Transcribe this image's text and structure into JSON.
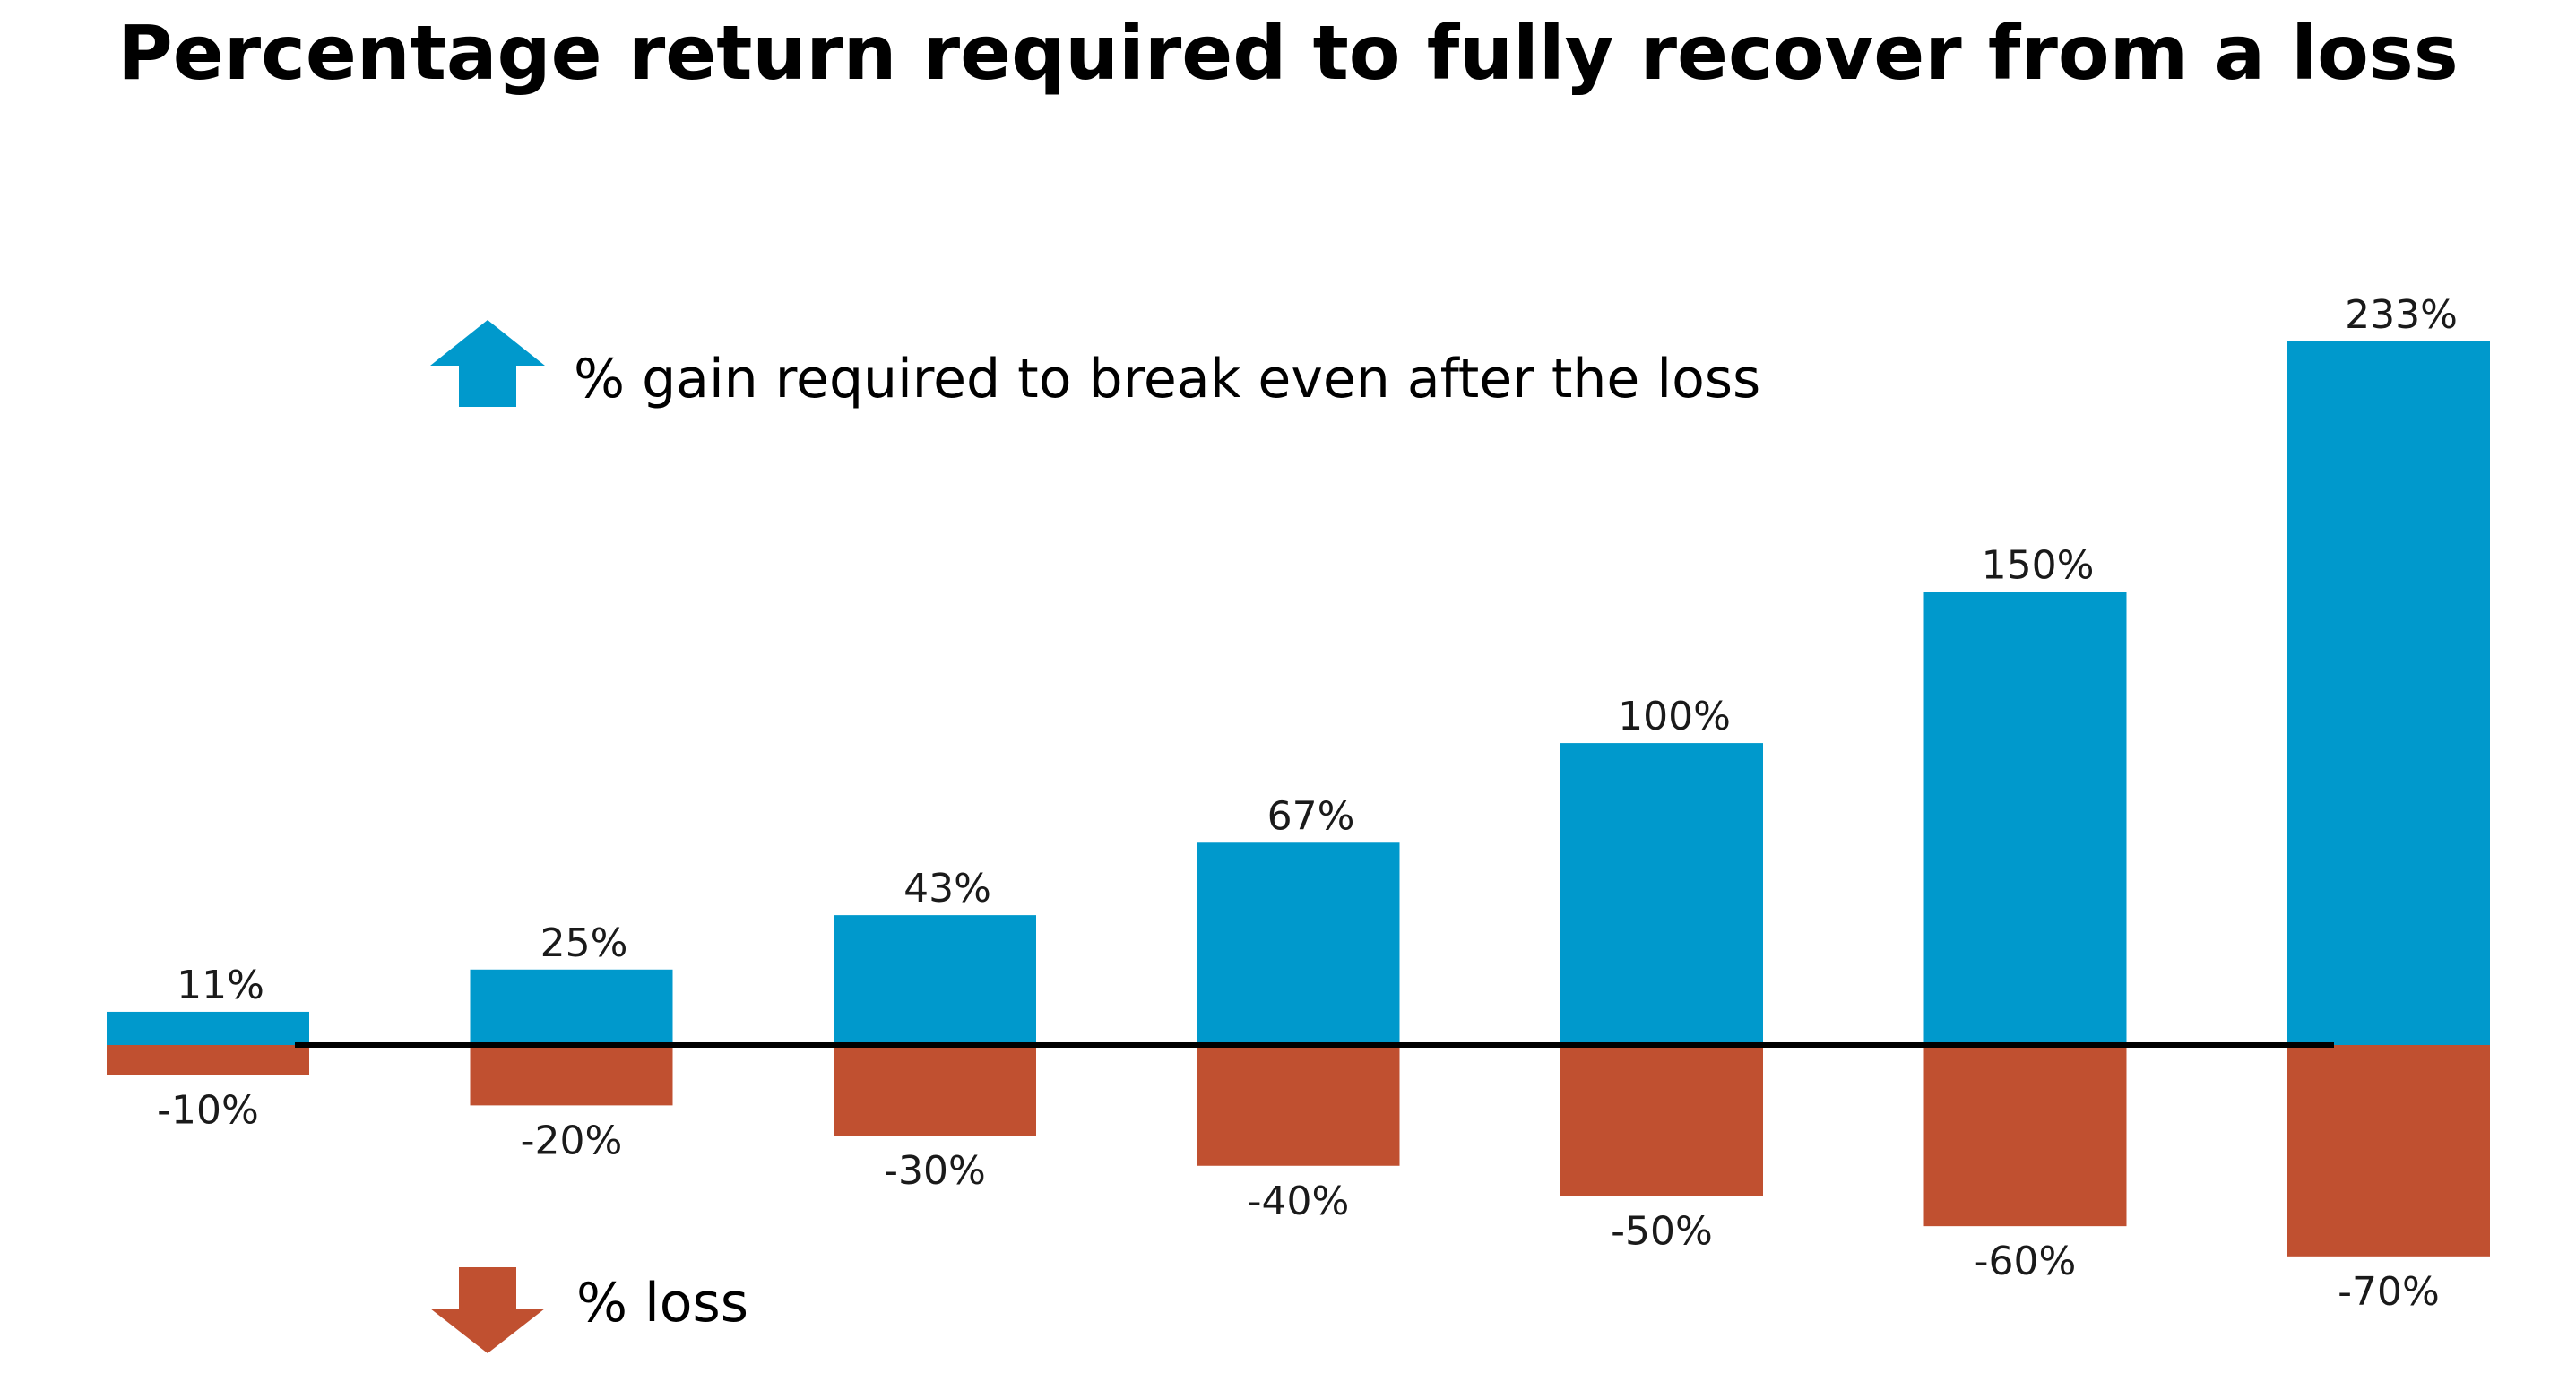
{
  "title": "Percentage return required to fully recover from a loss",
  "legend": {
    "gain_label": "% gain required to break even after the loss",
    "loss_label": "% loss",
    "gain_icon": "arrow-up-icon",
    "loss_icon": "arrow-down-icon"
  },
  "colors": {
    "gain": "#0099cc",
    "loss": "#c05030",
    "baseline": "#000000"
  },
  "chart_data": {
    "type": "bar",
    "title": "Percentage return required to fully recover from a loss",
    "xlabel": "",
    "ylabel": "",
    "ylim": [
      -70,
      233
    ],
    "grid": false,
    "legend_position": "upper-left",
    "series": [
      {
        "name": "% gain required to break even after the loss",
        "values": [
          11,
          25,
          43,
          67,
          100,
          150,
          233
        ],
        "labels": [
          "11%",
          "25%",
          "43%",
          "67%",
          "100%",
          "150%",
          "233%"
        ]
      },
      {
        "name": "% loss",
        "values": [
          -10,
          -20,
          -30,
          -40,
          -50,
          -60,
          -70
        ],
        "labels": [
          "-10%",
          "-20%",
          "-30%",
          "-40%",
          "-50%",
          "-60%",
          "-70%"
        ]
      }
    ]
  }
}
